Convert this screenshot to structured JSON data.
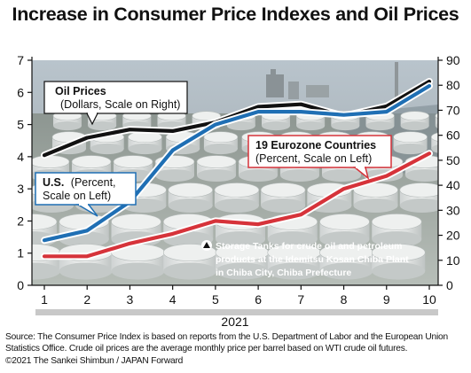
{
  "chart_data": {
    "type": "line",
    "title": "Increase in Consumer Price Indexes and Oil Prices",
    "xlabel": "2021",
    "x": [
      1,
      2,
      3,
      4,
      5,
      6,
      7,
      8,
      9,
      10
    ],
    "y_left": {
      "ylim": [
        0,
        7
      ],
      "ticks": [
        0,
        1,
        2,
        3,
        4,
        5,
        6,
        7
      ]
    },
    "y_right": {
      "ylim": [
        0,
        90
      ],
      "ticks": [
        0,
        10,
        20,
        30,
        40,
        50,
        60,
        70,
        80,
        90
      ]
    },
    "series": [
      {
        "name": "Oil Prices",
        "subtitle": "(Dollars, Scale on Right)",
        "axis": "right",
        "color": "#111111",
        "values": [
          52.0,
          59.0,
          62.3,
          61.7,
          65.2,
          71.4,
          72.4,
          67.7,
          71.6,
          81.5
        ]
      },
      {
        "name": "U.S.",
        "subtitle": "(Percent, Scale on Left)",
        "axis": "left",
        "color": "#1f6fb4",
        "values": [
          1.4,
          1.7,
          2.6,
          4.2,
          5.0,
          5.4,
          5.4,
          5.3,
          5.4,
          6.2
        ]
      },
      {
        "name": "19 Eurozone Countries",
        "subtitle": "(Percent, Scale on Left)",
        "axis": "left",
        "color": "#d6333a",
        "values": [
          0.9,
          0.9,
          1.3,
          1.6,
          2.0,
          1.9,
          2.2,
          3.0,
          3.4,
          4.1
        ]
      }
    ],
    "grid": false
  },
  "photo_caption": [
    "Storage Tanks for crude oil and petroleum",
    "products at the Idemitsu Kosan Chiba Plant",
    "in Chiba City, Chiba Prefecture"
  ],
  "source_note": "Source: The Consumer Price Index is based on reports from the U.S. Department of Labor and the European Union Statistics Office. Crude oil prices are the average monthly price per barrel based on WTI crude oil futures.",
  "copyright": "©2021 The Sankei Shimbun / JAPAN Forward"
}
